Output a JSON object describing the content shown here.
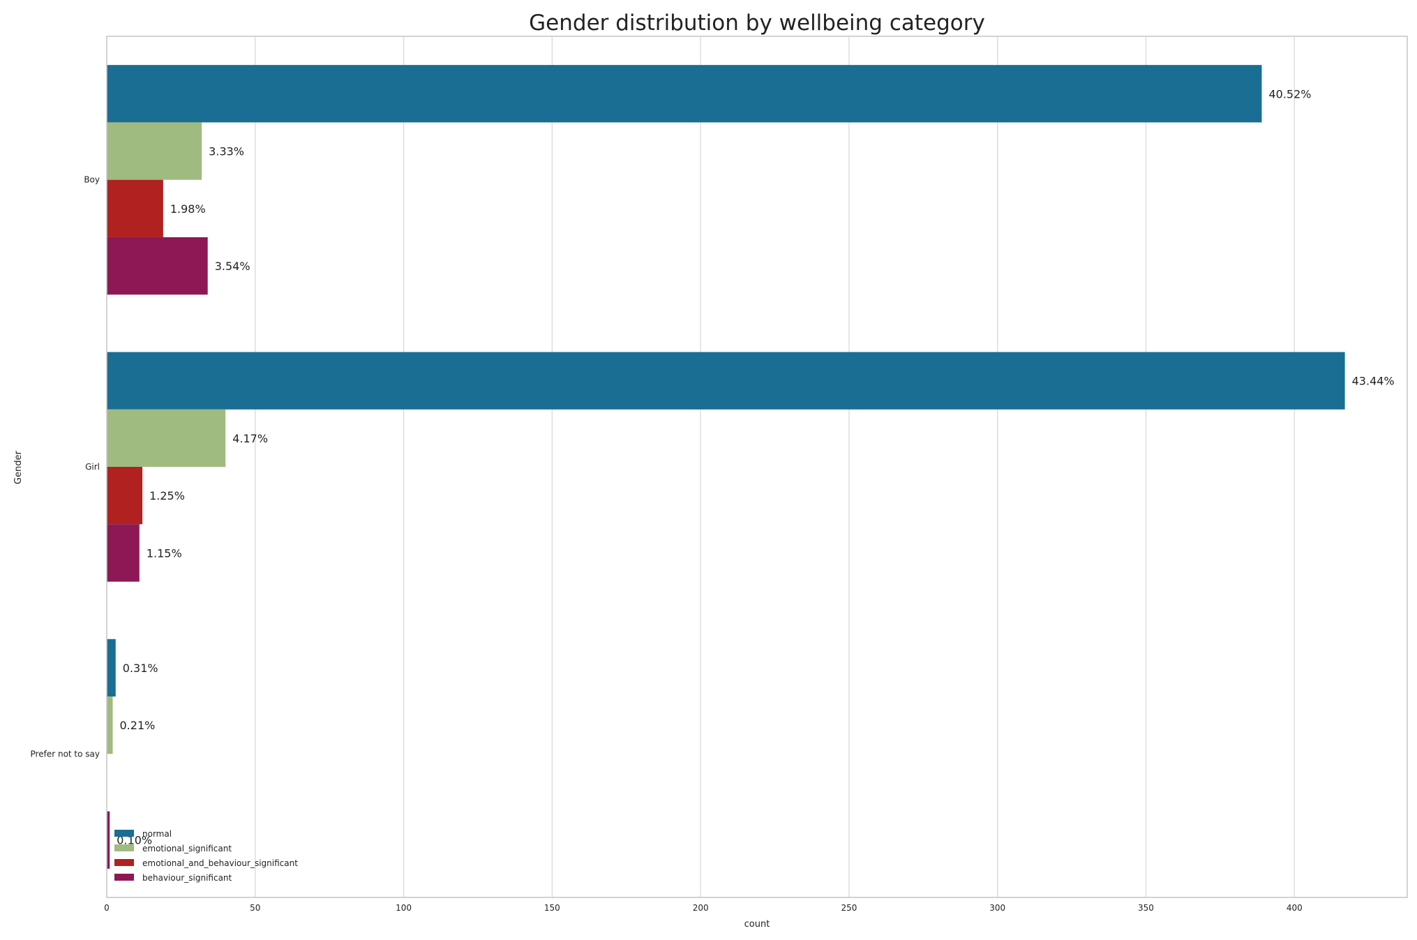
{
  "chart_data": {
    "type": "bar",
    "orientation": "horizontal",
    "title": "Gender distribution by wellbeing category",
    "xlabel": "count",
    "ylabel": "Gender",
    "categories": [
      "Boy",
      "Girl",
      "Prefer not to say"
    ],
    "xlim": [
      0,
      438
    ],
    "xticks": [
      0,
      50,
      100,
      150,
      200,
      250,
      300,
      350,
      400
    ],
    "grid": true,
    "legend_position": "lower-left",
    "series": [
      {
        "name": "normal",
        "color": "#1a6d93",
        "values": [
          389,
          417,
          3
        ],
        "labels": [
          "40.52%",
          "43.44%",
          "0.31%"
        ]
      },
      {
        "name": "emotional_significant",
        "color": "#a0bb7f",
        "values": [
          32,
          40,
          2
        ],
        "labels": [
          "3.33%",
          "4.17%",
          "0.21%"
        ]
      },
      {
        "name": "emotional_and_behaviour_significant",
        "color": "#b0211f",
        "values": [
          19,
          12,
          0
        ],
        "labels": [
          "1.98%",
          "1.25%",
          ""
        ]
      },
      {
        "name": "behaviour_significant",
        "color": "#8e1856",
        "values": [
          34,
          11,
          1
        ],
        "labels": [
          "3.54%",
          "1.15%",
          "0.10%"
        ]
      }
    ]
  }
}
